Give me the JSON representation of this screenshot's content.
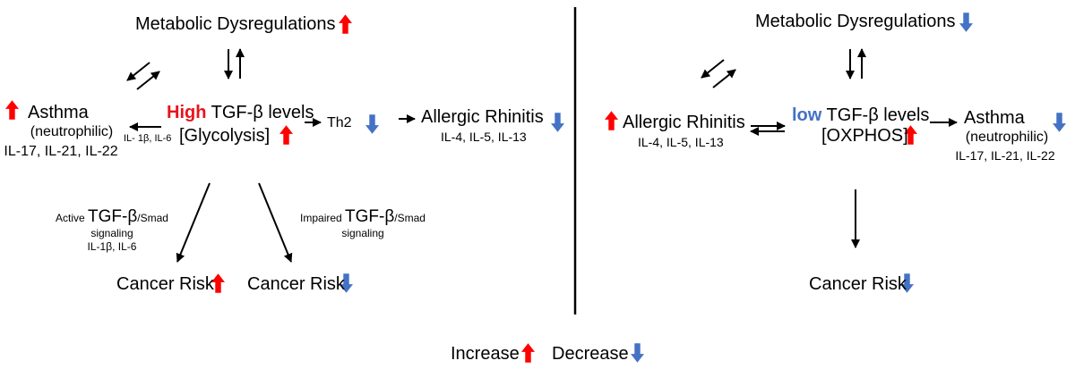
{
  "colors": {
    "increase": "#ff0000",
    "decrease": "#4472c4",
    "line": "#000000"
  },
  "left": {
    "top": "Metabolic Dysregulations",
    "center_high": "High",
    "center_tgf": "TGF-β levels",
    "center_glycolysis": "[Glycolysis]",
    "asthma": "Asthma",
    "asthma_sub": "(neutrophilic)",
    "asthma_il": "IL-17, IL-21, IL-22",
    "asthma_arrow_label": "IL- 1β, IL-6",
    "th2": "Th2",
    "rhinitis": "Allergic Rhinitis",
    "rhinitis_il": "IL-4, IL-5, IL-13",
    "active_1": "Active",
    "active_2": "TGF-β",
    "active_3": "/Smad",
    "active_4": "signaling",
    "active_5": "IL-1β, IL-6",
    "impaired_1": "Impaired",
    "impaired_2": "TGF-β",
    "impaired_3": "/Smad",
    "impaired_4": "signaling",
    "cancer_left": "Cancer Risk",
    "cancer_right": "Cancer Risk"
  },
  "right": {
    "top": "Metabolic Dysregulations",
    "rhinitis": "Allergic Rhinitis",
    "rhinitis_il": "IL-4, IL-5, IL-13",
    "center_low": "low",
    "center_tgf": "TGF-β levels",
    "center_oxphos": "[OXPHOS]",
    "asthma": "Asthma",
    "asthma_sub": "(neutrophilic)",
    "asthma_il": "IL-17, IL-21, IL-22",
    "cancer": "Cancer Risk"
  },
  "legend": {
    "increase": "Increase",
    "decrease": "Decrease"
  }
}
